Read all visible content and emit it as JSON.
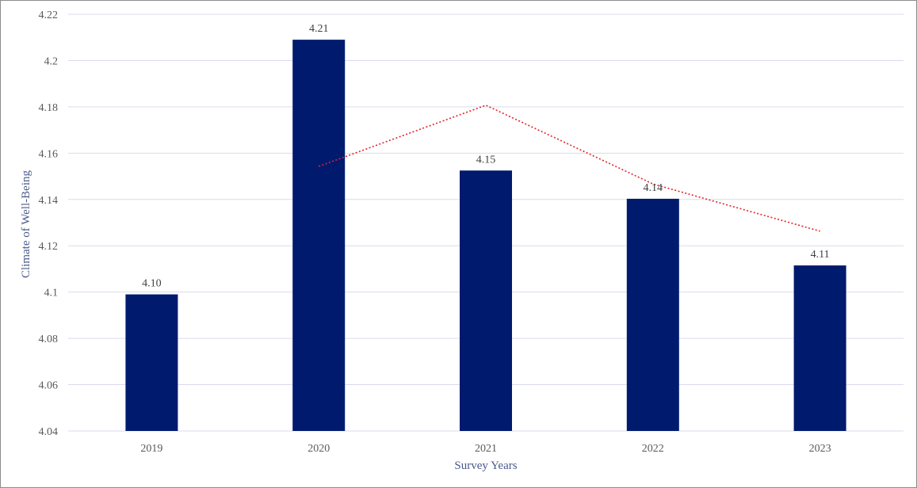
{
  "chart_data": {
    "type": "bar",
    "title": "",
    "xlabel": "Survey Years",
    "ylabel": "Climate of Well-Being",
    "categories": [
      "2019",
      "2020",
      "2021",
      "2022",
      "2023"
    ],
    "values": [
      4.099,
      4.209,
      4.1525,
      4.1403,
      4.1115
    ],
    "data_labels": [
      "4.10",
      "4.21",
      "4.15",
      "4.14",
      "4.11"
    ],
    "ylim": [
      4.04,
      4.22
    ],
    "yticks": [
      4.04,
      4.06,
      4.08,
      4.1,
      4.12,
      4.14,
      4.16,
      4.18,
      4.2,
      4.22
    ],
    "ytick_labels": [
      "4.04",
      "4.06",
      "4.08",
      "4.1",
      "4.12",
      "4.14",
      "4.16",
      "4.18",
      "4.2",
      "4.22"
    ],
    "grid": true,
    "legend": "none",
    "trendline": {
      "style": "dotted",
      "categories": [
        "2020",
        "2021",
        "2022",
        "2023"
      ],
      "values": [
        4.1543,
        4.1807,
        4.1467,
        4.1263
      ]
    },
    "colors": {
      "bar": "#001a6e",
      "trendline": "#e8202a",
      "grid": "#d9dbee",
      "axis_title": "#4a5a8a"
    }
  }
}
